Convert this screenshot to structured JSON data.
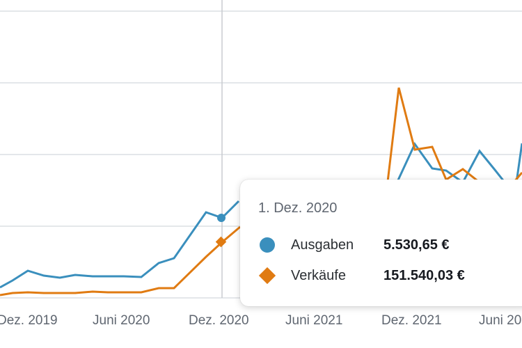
{
  "colors": {
    "ausgaben": "#3a8fbd",
    "verkaeufe": "#e07b12",
    "grid": "#dcdfe3",
    "crosshair": "#c8ccd0"
  },
  "tooltip": {
    "date": "1. Dez. 2020",
    "rows": [
      {
        "label": "Ausgaben",
        "value": "5.530,65 €",
        "marker": "circle"
      },
      {
        "label": "Verkäufe",
        "value": "151.540,03 €",
        "marker": "diamond"
      }
    ]
  },
  "chart_data": {
    "type": "line",
    "title": "",
    "xlabel": "",
    "ylabel": "",
    "grid": true,
    "x": [
      "2019-11",
      "2019-12",
      "2020-01",
      "2020-02",
      "2020-03",
      "2020-04",
      "2020-05",
      "2020-06",
      "2020-07",
      "2020-08",
      "2020-09",
      "2020-10",
      "2020-11",
      "2020-12",
      "2021-01",
      "2021-10",
      "2021-11",
      "2021-12",
      "2021-12b",
      "2022-01",
      "2022-02",
      "2022-03",
      "2022-04",
      "2022-05",
      "2022-06",
      "2022-07"
    ],
    "x_ticks": [
      "Dez. 2019",
      "Juni 2020",
      "Dez. 2020",
      "Juni 2021",
      "Dez. 2021",
      "Juni 20"
    ],
    "series": [
      {
        "name": "Ausgaben",
        "points": [
          [
            "2019-11",
            0.2
          ],
          [
            "2019-12",
            0.5
          ],
          [
            "2020-01",
            0.9
          ],
          [
            "2020-02",
            1.6
          ],
          [
            "2020-03",
            1.35
          ],
          [
            "2020-04",
            1.25
          ],
          [
            "2020-05",
            1.4
          ],
          [
            "2020-06",
            1.35
          ],
          [
            "2020-07",
            1.35
          ],
          [
            "2020-08",
            1.35
          ],
          [
            "2020-09",
            1.3
          ],
          [
            "2020-10",
            2.0
          ],
          [
            "2020-11",
            2.4
          ],
          [
            "2020-12",
            4.8
          ],
          [
            "2020-12b",
            4.45
          ],
          [
            "2021-01",
            4.6
          ],
          [
            "2021-02",
            5.4
          ]
        ]
      },
      {
        "name": "Verkäufe",
        "points": [
          [
            "2019-11",
            0.1
          ],
          [
            "2019-12",
            0.3
          ],
          [
            "2020-01",
            0.28
          ],
          [
            "2020-02",
            0.25
          ],
          [
            "2020-03",
            0.27
          ],
          [
            "2020-04",
            0.25
          ],
          [
            "2020-05",
            0.3
          ],
          [
            "2020-06",
            0.28
          ],
          [
            "2020-07",
            0.3
          ],
          [
            "2020-08",
            0.27
          ],
          [
            "2020-09",
            0.55
          ],
          [
            "2020-10",
            0.55
          ],
          [
            "2020-11",
            2.0
          ],
          [
            "2020-12",
            2.75
          ],
          [
            "2020-12b",
            3.9
          ],
          [
            "2021-01",
            4.2
          ]
        ]
      }
    ]
  }
}
